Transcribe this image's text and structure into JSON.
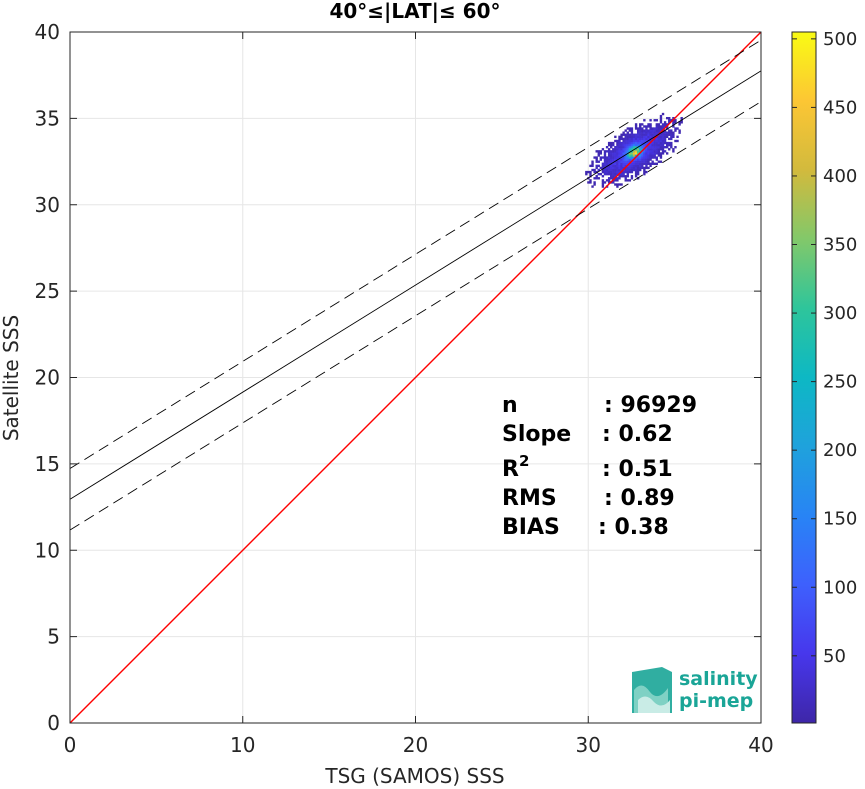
{
  "chart_data": {
    "type": "heatmap",
    "title": "40°≤|LAT|≤ 60°",
    "xlabel": "TSG (SAMOS) SSS",
    "ylabel": "Satellite SSS",
    "xlim": [
      0,
      40
    ],
    "ylim": [
      0,
      40
    ],
    "xticks": [
      0,
      10,
      20,
      30,
      40
    ],
    "yticks": [
      0,
      5,
      10,
      15,
      20,
      25,
      30,
      35,
      40
    ],
    "grid": true,
    "colorbar": {
      "range": [
        1,
        505
      ],
      "ticks": [
        50,
        100,
        150,
        200,
        250,
        300,
        350,
        400,
        450,
        500
      ],
      "colormap": "parula"
    },
    "density_cluster": {
      "x_range": [
        28.5,
        37.2
      ],
      "y_range": [
        29.2,
        36.3
      ],
      "peak": [
        32.6,
        33.0
      ],
      "peak_count": 505
    },
    "lines": [
      {
        "name": "identity",
        "color": "#ff0000",
        "style": "solid",
        "slope": 1.0,
        "intercept": 0.0
      },
      {
        "name": "regression",
        "color": "#000000",
        "style": "solid",
        "slope": 0.62,
        "intercept": 12.95
      },
      {
        "name": "regression_upper",
        "color": "#000000",
        "style": "dashed",
        "slope": 0.62,
        "intercept": 14.73
      },
      {
        "name": "regression_lower",
        "color": "#000000",
        "style": "dashed",
        "slope": 0.62,
        "intercept": 11.17
      }
    ],
    "stats": [
      {
        "label": "n",
        "value": ": 96929"
      },
      {
        "label": "Slope",
        "value": ": 0.62"
      },
      {
        "label": "R",
        "sup": "2",
        "value": ": 0.51"
      },
      {
        "label": "RMS",
        "value": ": 0.89"
      },
      {
        "label": "BIAS",
        "value": ": 0.38"
      }
    ]
  },
  "logo": {
    "line1": "salinity",
    "line2": "pi-mep"
  }
}
